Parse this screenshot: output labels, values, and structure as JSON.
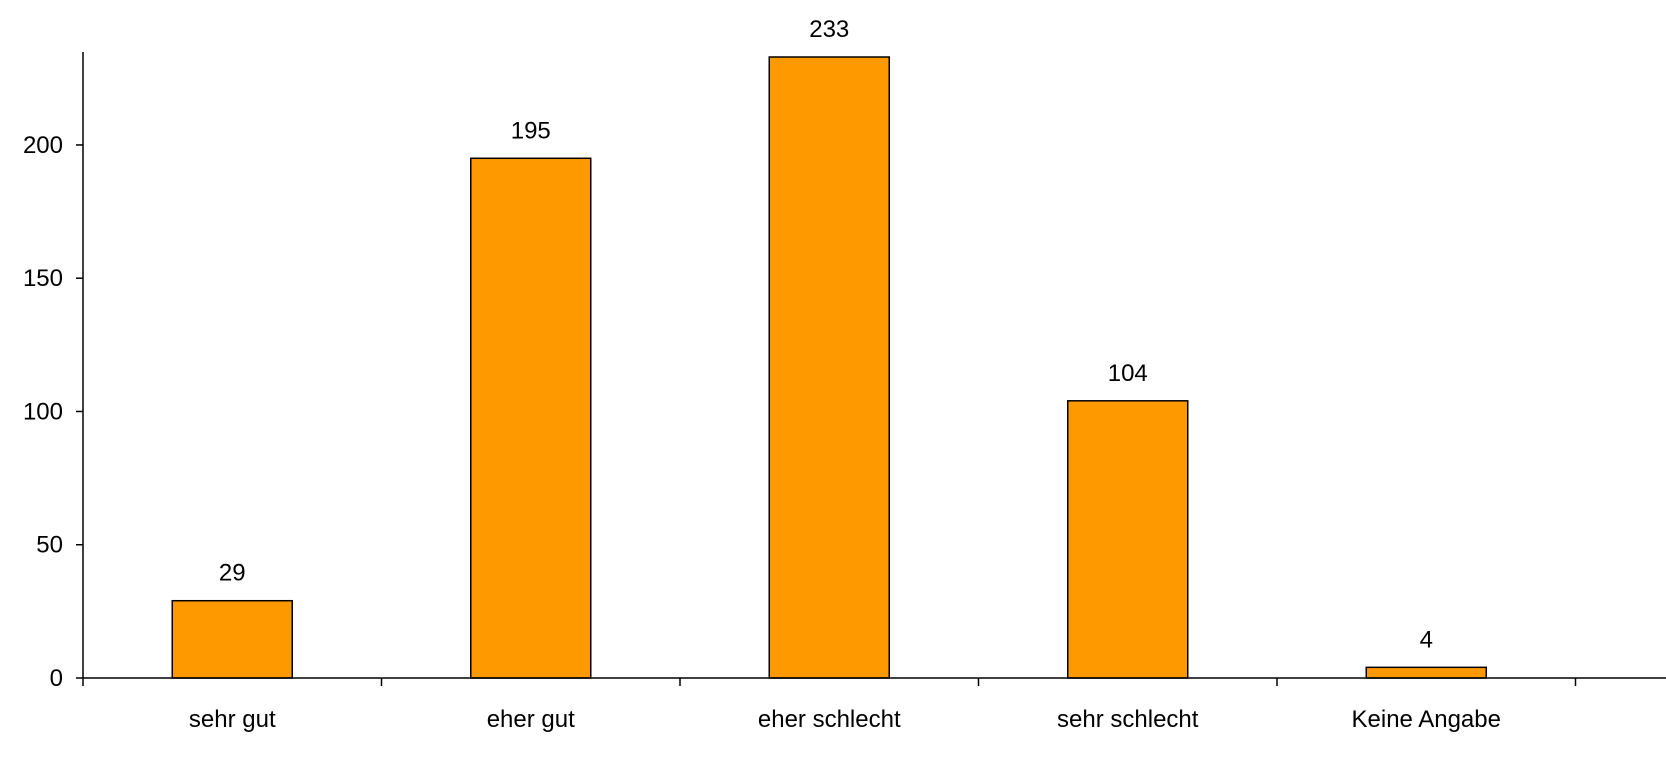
{
  "chart_data": {
    "type": "bar",
    "title": "",
    "xlabel": "",
    "ylabel": "",
    "categories": [
      "sehr gut",
      "eher gut",
      "eher schlecht",
      "sehr schlecht",
      "Keine Angabe"
    ],
    "values": [
      29,
      195,
      233,
      104,
      4
    ],
    "data_labels": [
      "29",
      "195",
      "233",
      "104",
      "4"
    ],
    "ylim": [
      0,
      233
    ],
    "yticks": [
      0,
      50,
      100,
      150,
      200
    ],
    "ytick_labels": [
      "0",
      "50",
      "100",
      "150",
      "200"
    ],
    "grid": false,
    "legend": "none",
    "colors": {
      "bar_fill": "#FF9900",
      "bar_stroke": "#000000",
      "axis": "#000000"
    }
  }
}
